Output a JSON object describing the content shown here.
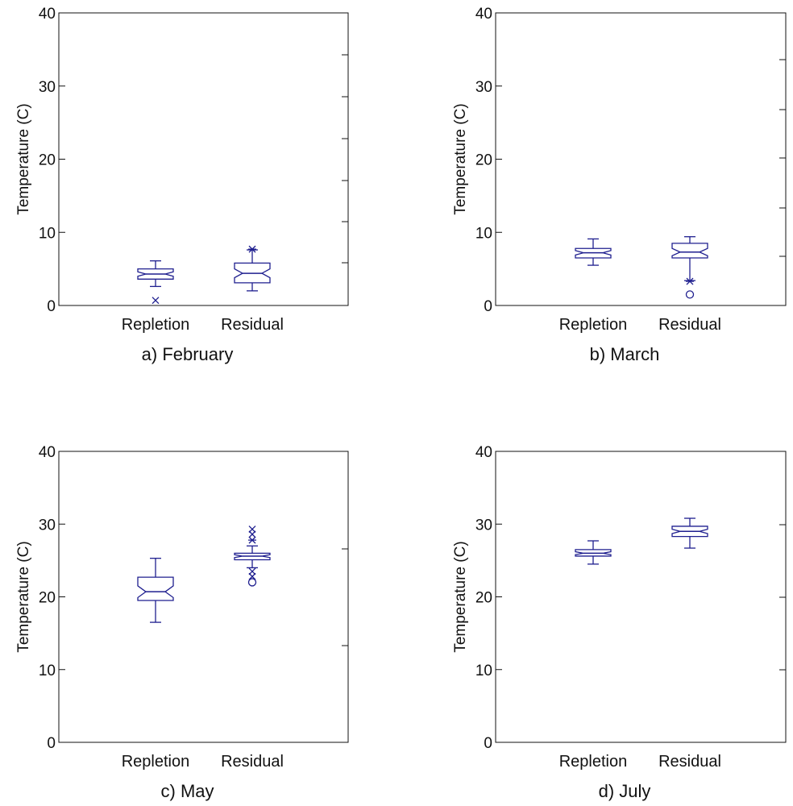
{
  "chart_data": [
    {
      "type": "boxplot",
      "caption": "a) February",
      "ylabel": "Temperature (C)",
      "ylim": [
        0,
        40
      ],
      "yticks": [
        0,
        10,
        20,
        30,
        40
      ],
      "categories": [
        "Repletion",
        "Residual"
      ],
      "boxes": [
        {
          "name": "Repletion",
          "whisker_low": 2.6,
          "q1": 3.6,
          "median": 4.3,
          "q3": 5.0,
          "whisker_high": 6.1,
          "notch_low": 4.0,
          "notch_high": 4.6,
          "outliers": [
            {
              "value": 0.7,
              "marker": "x"
            }
          ]
        },
        {
          "name": "Residual",
          "whisker_low": 2.0,
          "q1": 3.1,
          "median": 4.4,
          "q3": 5.8,
          "whisker_high": 7.6,
          "notch_low": 3.8,
          "notch_high": 5.0,
          "outliers": [
            {
              "value": 7.7,
              "marker": "*"
            }
          ]
        }
      ]
    },
    {
      "type": "boxplot",
      "caption": "b) March",
      "ylabel": "Temperature (C)",
      "ylim": [
        0,
        40
      ],
      "yticks": [
        0,
        10,
        20,
        30,
        40
      ],
      "categories": [
        "Repletion",
        "Residual"
      ],
      "boxes": [
        {
          "name": "Repletion",
          "whisker_low": 5.5,
          "q1": 6.5,
          "median": 7.2,
          "q3": 7.8,
          "whisker_high": 9.1,
          "notch_low": 6.9,
          "notch_high": 7.5,
          "outliers": []
        },
        {
          "name": "Residual",
          "whisker_low": 3.4,
          "q1": 6.5,
          "median": 7.3,
          "q3": 8.5,
          "whisker_high": 9.4,
          "notch_low": 6.8,
          "notch_high": 7.8,
          "outliers": [
            {
              "value": 3.3,
              "marker": "*"
            },
            {
              "value": 1.5,
              "marker": "o"
            }
          ]
        }
      ]
    },
    {
      "type": "boxplot",
      "caption": "c) May",
      "ylabel": "Temperature (C)",
      "ylim": [
        0,
        40
      ],
      "yticks": [
        0,
        10,
        20,
        30,
        40
      ],
      "categories": [
        "Repletion",
        "Residual"
      ],
      "boxes": [
        {
          "name": "Repletion",
          "whisker_low": 16.5,
          "q1": 19.5,
          "median": 20.7,
          "q3": 22.7,
          "whisker_high": 25.3,
          "notch_low": 19.9,
          "notch_high": 21.5,
          "outliers": []
        },
        {
          "name": "Residual",
          "whisker_low": 24.0,
          "q1": 25.1,
          "median": 25.6,
          "q3": 26.0,
          "whisker_high": 27.0,
          "notch_low": 25.4,
          "notch_high": 25.8,
          "outliers": [
            {
              "value": 29.3,
              "marker": "x"
            },
            {
              "value": 28.6,
              "marker": "x"
            },
            {
              "value": 27.8,
              "marker": "*"
            },
            {
              "value": 23.5,
              "marker": "x"
            },
            {
              "value": 22.8,
              "marker": "x"
            },
            {
              "value": 22.0,
              "marker": "o"
            }
          ]
        }
      ]
    },
    {
      "type": "boxplot",
      "caption": "d) July",
      "ylabel": "Temperature (C)",
      "ylim": [
        0,
        40
      ],
      "yticks": [
        0,
        10,
        20,
        30,
        40
      ],
      "categories": [
        "Repletion",
        "Residual"
      ],
      "boxes": [
        {
          "name": "Repletion",
          "whisker_low": 24.5,
          "q1": 25.6,
          "median": 26.0,
          "q3": 26.5,
          "whisker_high": 27.7,
          "notch_low": 25.8,
          "notch_high": 26.2,
          "outliers": []
        },
        {
          "name": "Residual",
          "whisker_low": 26.7,
          "q1": 28.3,
          "median": 29.0,
          "q3": 29.7,
          "whisker_high": 30.8,
          "notch_low": 28.7,
          "notch_high": 29.3,
          "outliers": []
        }
      ]
    }
  ],
  "colors": {
    "series": "#1f1f8f",
    "axis": "#111111"
  }
}
